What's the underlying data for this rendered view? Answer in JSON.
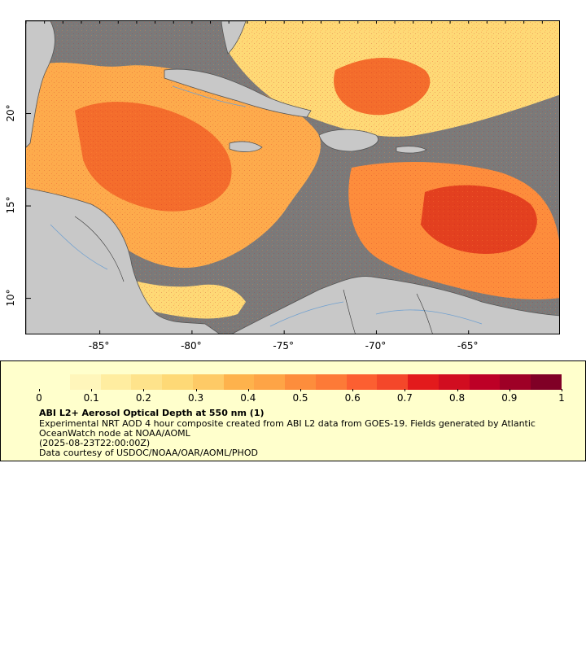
{
  "map": {
    "x_tick_labels": [
      "-85°",
      "-80°",
      "-75°",
      "-70°",
      "-65°"
    ],
    "x_tick_values": [
      -85,
      -80,
      -75,
      -70,
      -65
    ],
    "y_tick_labels": [
      "20°",
      "15°",
      "10°"
    ],
    "y_tick_values": [
      20,
      15,
      10
    ],
    "lon_range": [
      -89,
      -60
    ],
    "lat_range": [
      8,
      25
    ],
    "land_color": "#c8c8c8",
    "no_data_color": "#7a7a7a",
    "coast_color": "#555555",
    "river_color": "#6fa0d0"
  },
  "legend": {
    "colorbar_colors": [
      "#ffffcc",
      "#fff6bb",
      "#ffeda0",
      "#fee38b",
      "#fed976",
      "#feca66",
      "#feb24c",
      "#fea446",
      "#fd8d3c",
      "#fd7a37",
      "#fc5f31",
      "#f4472a",
      "#e31a1c",
      "#d10d20",
      "#bd0026",
      "#9e0026",
      "#800026"
    ],
    "tick_labels": [
      "0",
      "0.1",
      "0.2",
      "0.3",
      "0.4",
      "0.5",
      "0.6",
      "0.7",
      "0.8",
      "0.9",
      "1"
    ],
    "range": [
      0,
      1
    ],
    "title": "ABI L2+ Aerosol Optical Depth at 550 nm (1)",
    "line1": "Experimental NRT AOD 4 hour composite created from ABI L2 data from GOES-19. Fields generated by Atlantic",
    "line2": "OceanWatch node at NOAA/AOML",
    "line3": "(2025-08-23T22:00:00Z)",
    "line4": "Data courtesy of USDOC/NOAA/OAR/AOML/PHOD"
  }
}
